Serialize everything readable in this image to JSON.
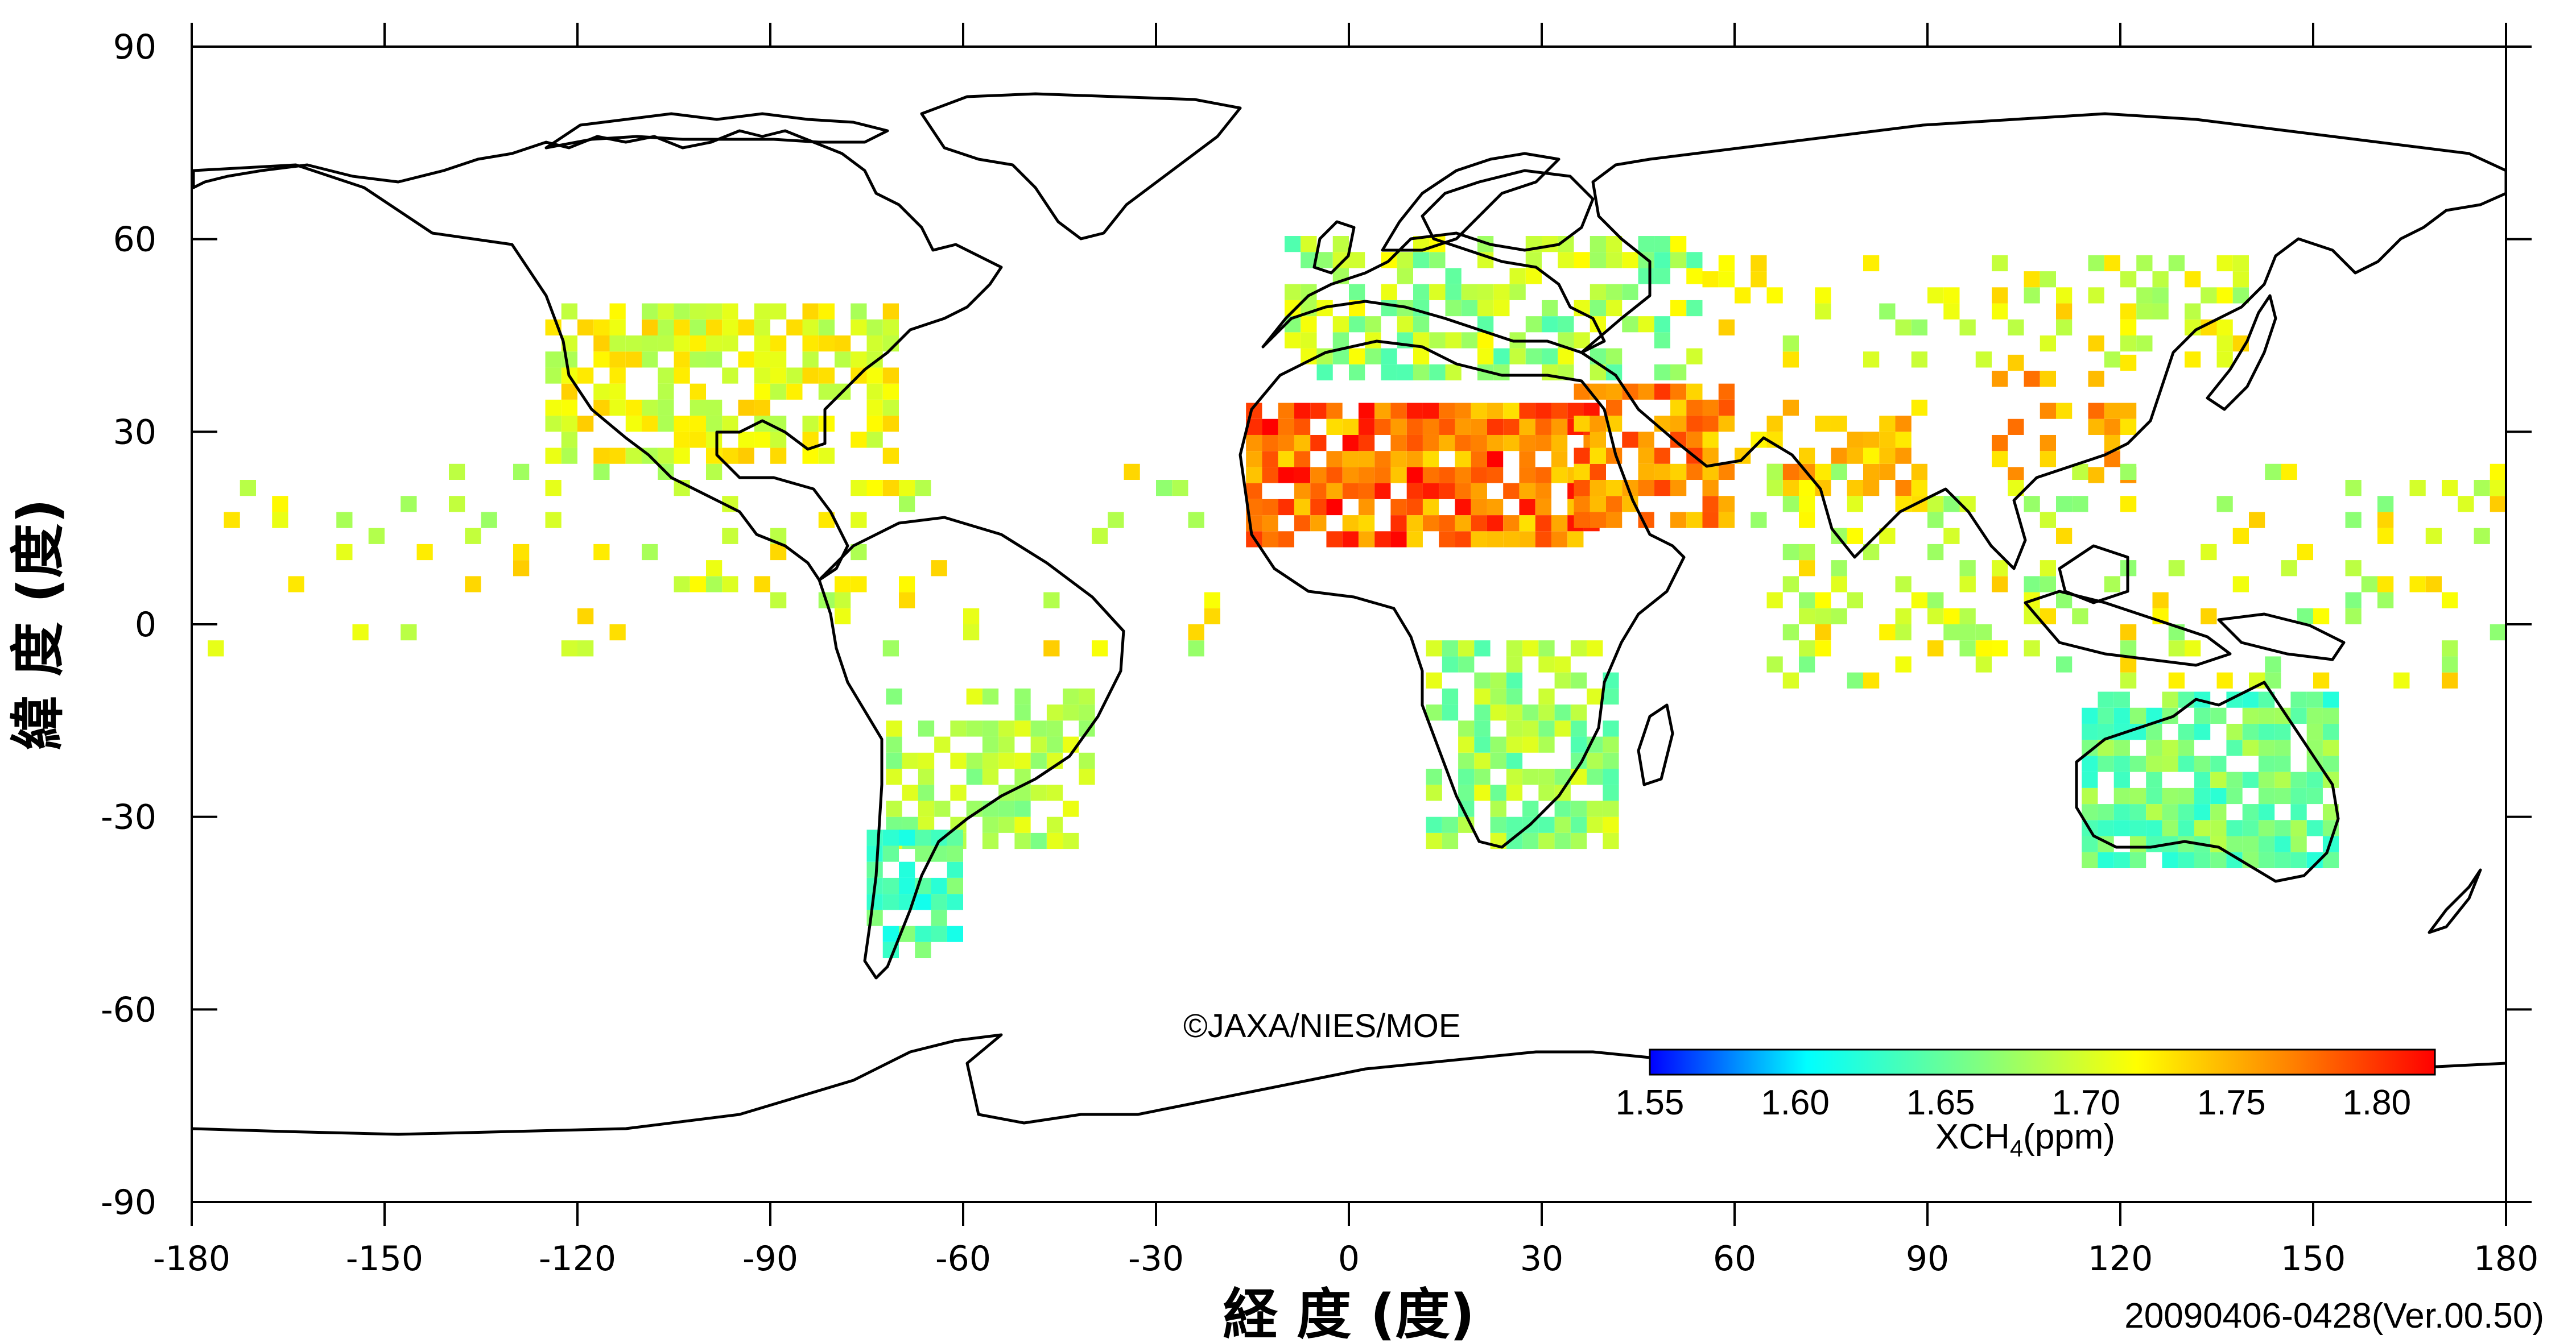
{
  "map": {
    "lon_range": [
      -180,
      180
    ],
    "lat_range": [
      -90,
      90
    ],
    "lon_ticks": [
      -180,
      -150,
      -120,
      -90,
      -60,
      -30,
      0,
      30,
      60,
      90,
      120,
      150,
      180
    ],
    "lat_ticks": [
      90,
      60,
      30,
      0,
      -30,
      -60,
      -90
    ],
    "x_axis_label": "経 度 (度)",
    "y_axis_label": "緯 度 (度)",
    "copyright": "©JAXA/NIES/MOE",
    "version": "20090406-0428(Ver.00.50)"
  },
  "colorbar": {
    "min": 1.55,
    "max": 1.82,
    "tick_labels": [
      "1.55",
      "1.60",
      "1.65",
      "1.70",
      "1.75",
      "1.80"
    ],
    "title_main": "XCH",
    "title_sub": "4",
    "title_unit": "(ppm)",
    "colors": [
      "#0000ff",
      "#00ffff",
      "#80ff80",
      "#ffff00",
      "#ff8000",
      "#ff0000"
    ]
  },
  "chart_data": {
    "type": "heatmap",
    "title": "",
    "xlabel": "経 度 (度)",
    "ylabel": "緯 度 (度)",
    "xlim": [
      -180,
      180
    ],
    "ylim": [
      -90,
      90
    ],
    "value_unit": "ppm",
    "variable": "XCH4",
    "regions": [
      {
        "lon": [
          -16,
          38
        ],
        "lat": [
          12,
          33
        ],
        "range": [
          1.73,
          1.82
        ],
        "density": 0.85
      },
      {
        "lon": [
          35,
          60
        ],
        "lat": [
          15,
          37
        ],
        "range": [
          1.73,
          1.8
        ],
        "density": 0.8
      },
      {
        "lon": [
          60,
          88
        ],
        "lat": [
          20,
          35
        ],
        "range": [
          1.72,
          1.78
        ],
        "density": 0.55
      },
      {
        "lon": [
          100,
          122
        ],
        "lat": [
          22,
          42
        ],
        "range": [
          1.72,
          1.78
        ],
        "density": 0.4
      },
      {
        "lon": [
          -125,
          -70
        ],
        "lat": [
          25,
          50
        ],
        "range": [
          1.68,
          1.74
        ],
        "density": 0.6
      },
      {
        "lon": [
          -10,
          55
        ],
        "lat": [
          38,
          60
        ],
        "range": [
          1.64,
          1.72
        ],
        "density": 0.55
      },
      {
        "lon": [
          55,
          140
        ],
        "lat": [
          40,
          57
        ],
        "range": [
          1.67,
          1.74
        ],
        "density": 0.3
      },
      {
        "lon": [
          12,
          40
        ],
        "lat": [
          -35,
          -3
        ],
        "range": [
          1.64,
          1.71
        ],
        "density": 0.7
      },
      {
        "lon": [
          114,
          153
        ],
        "lat": [
          -38,
          -12
        ],
        "range": [
          1.62,
          1.69
        ],
        "density": 0.8
      },
      {
        "lon": [
          -72,
          -40
        ],
        "lat": [
          -35,
          -10
        ],
        "range": [
          1.66,
          1.71
        ],
        "density": 0.6
      },
      {
        "lon": [
          -75,
          -60
        ],
        "lat": [
          -52,
          -33
        ],
        "range": [
          1.61,
          1.67
        ],
        "density": 0.75
      },
      {
        "lon": [
          -180,
          -20
        ],
        "lat": [
          -5,
          25
        ],
        "range": [
          1.67,
          1.74
        ],
        "density": 0.1
      },
      {
        "lon": [
          60,
          180
        ],
        "lat": [
          -10,
          25
        ],
        "range": [
          1.66,
          1.74
        ],
        "density": 0.15
      },
      {
        "lon": [
          65,
          110
        ],
        "lat": [
          -10,
          20
        ],
        "range": [
          1.67,
          1.73
        ],
        "density": 0.2
      }
    ]
  }
}
